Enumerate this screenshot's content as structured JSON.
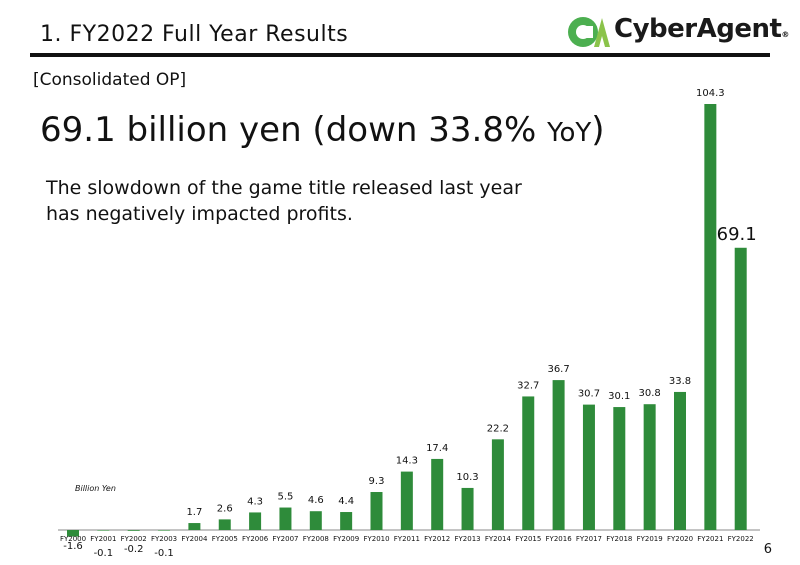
{
  "slide": {
    "title": "1. FY2022 Full Year Results",
    "section_label": "[Consolidated OP]",
    "headline_main": "69.1 billion yen (down 33.8% ",
    "headline_yoy": "YoY",
    "headline_end": ")",
    "description_line1": "The slowdown of the game title released last year",
    "description_line2": "has negatively impacted profits.",
    "page_number": "6",
    "logo_text": "CyberAgent",
    "logo_mark": "registered-mark"
  },
  "colors": {
    "bar": "#2e8b3a",
    "logo_green": "#4caf50",
    "logo_green_light": "#8bc34a",
    "text": "#111111"
  },
  "chart_data": {
    "type": "bar",
    "title": "",
    "xlabel": "",
    "ylabel": "Billion Yen",
    "unit_label": "Billion Yen",
    "categories": [
      "FY2000",
      "FY2001",
      "FY2002",
      "FY2003",
      "FY2004",
      "FY2005",
      "FY2006",
      "FY2007",
      "FY2008",
      "FY2009",
      "FY2010",
      "FY2011",
      "FY2012",
      "FY2013",
      "FY2014",
      "FY2015",
      "FY2016",
      "FY2017",
      "FY2018",
      "FY2019",
      "FY2020",
      "FY2021",
      "FY2022"
    ],
    "values": [
      -1.6,
      -0.1,
      -0.2,
      -0.1,
      1.7,
      2.6,
      4.3,
      5.5,
      4.6,
      4.4,
      9.3,
      14.3,
      17.4,
      10.3,
      22.2,
      32.7,
      36.7,
      30.7,
      30.1,
      30.8,
      33.8,
      104.3,
      69.1
    ],
    "value_labels": [
      "-1.6",
      "-0.1",
      "-0.2",
      "-0.1",
      "1.7",
      "2.6",
      "4.3",
      "5.5",
      "4.6",
      "4.4",
      "9.3",
      "14.3",
      "17.4",
      "10.3",
      "22.2",
      "32.7",
      "36.7",
      "30.7",
      "30.1",
      "30.8",
      "33.8",
      "104.3",
      "69.1"
    ],
    "highlight_index": 22,
    "ylim": [
      -1.6,
      104.3
    ],
    "grid": false,
    "legend": "none"
  }
}
